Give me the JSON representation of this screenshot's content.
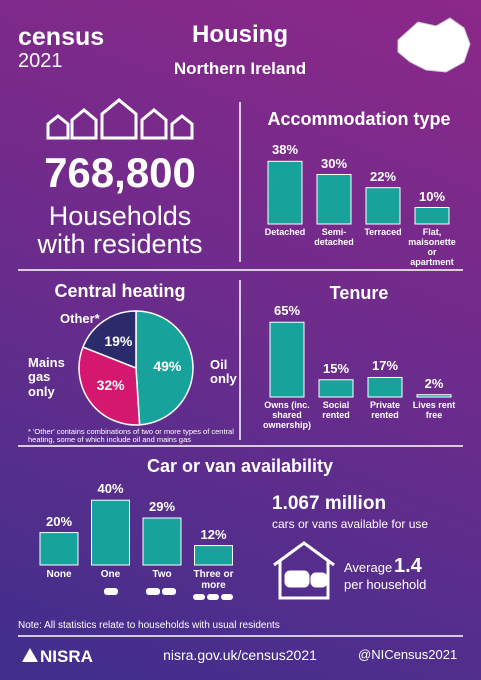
{
  "header": {
    "logo_word": "census",
    "logo_year": "2021",
    "title": "Housing",
    "subtitle": "Northern Ireland"
  },
  "households": {
    "value": "768,800",
    "line1": "Households",
    "line2": "with residents"
  },
  "chart_data": [
    {
      "type": "bar",
      "title": "Accommodation type",
      "categories": [
        "Detached",
        "Semi-detached",
        "Terraced",
        "Flat, maisonette or apartment"
      ],
      "values": [
        38,
        30,
        22,
        10
      ],
      "value_labels": [
        "38%",
        "30%",
        "22%",
        "10%"
      ],
      "color": "#17a39b"
    },
    {
      "type": "pie",
      "title": "Central heating",
      "categories": [
        "Oil only",
        "Mains gas only",
        "Other*"
      ],
      "values": [
        49,
        32,
        19
      ],
      "value_labels": [
        "49%",
        "32%",
        "19%"
      ],
      "colors": [
        "#17a39b",
        "#d4186f",
        "#2b2b6b"
      ],
      "footnote": "* 'Other' contains combinations of two or more types of central heating, some of which include oil and mains gas"
    },
    {
      "type": "bar",
      "title": "Tenure",
      "categories": [
        "Owns (inc. shared ownership)",
        "Social rented",
        "Private rented",
        "Lives rent free"
      ],
      "values": [
        65,
        15,
        17,
        2
      ],
      "value_labels": [
        "65%",
        "15%",
        "17%",
        "2%"
      ],
      "color": "#17a39b"
    },
    {
      "type": "bar",
      "title": "Car or van availability",
      "categories": [
        "None",
        "One",
        "Two",
        "Three or more"
      ],
      "values": [
        20,
        40,
        29,
        12
      ],
      "value_labels": [
        "20%",
        "40%",
        "29%",
        "12%"
      ],
      "color": "#17a39b"
    }
  ],
  "cars": {
    "total": "1.067 million",
    "total_label": "cars or vans available for use",
    "average_prefix": "Average",
    "average": "1.4",
    "average_suffix": "per household"
  },
  "footer": {
    "note": "Note: All statistics relate to households with usual residents",
    "org": "NISRA",
    "url": "nisra.gov.uk/census2021",
    "handle": "@NICensus2021"
  }
}
